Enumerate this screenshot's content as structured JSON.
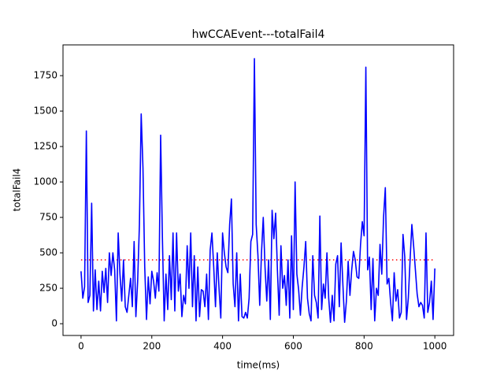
{
  "chart_data": {
    "type": "line",
    "title": "hwCCAEvent---totalFail4",
    "x_label": "time(ms)",
    "y_label": "totalFail4",
    "x": [
      0,
      5,
      10,
      15,
      20,
      25,
      30,
      35,
      40,
      45,
      50,
      55,
      60,
      65,
      70,
      75,
      80,
      85,
      90,
      95,
      100,
      105,
      110,
      115,
      120,
      125,
      130,
      135,
      140,
      145,
      150,
      155,
      160,
      165,
      170,
      175,
      180,
      185,
      190,
      195,
      200,
      205,
      210,
      215,
      220,
      225,
      230,
      235,
      240,
      245,
      250,
      255,
      260,
      265,
      270,
      275,
      280,
      285,
      290,
      295,
      300,
      305,
      310,
      315,
      320,
      325,
      330,
      335,
      340,
      345,
      350,
      355,
      360,
      365,
      370,
      375,
      380,
      385,
      390,
      395,
      400,
      405,
      410,
      415,
      420,
      425,
      430,
      435,
      440,
      445,
      450,
      455,
      460,
      465,
      470,
      475,
      480,
      485,
      490,
      495,
      500,
      505,
      510,
      515,
      520,
      525,
      530,
      535,
      540,
      545,
      550,
      555,
      560,
      565,
      570,
      575,
      580,
      585,
      590,
      595,
      600,
      605,
      610,
      615,
      620,
      625,
      630,
      635,
      640,
      645,
      650,
      655,
      660,
      665,
      670,
      675,
      680,
      685,
      690,
      695,
      700,
      705,
      710,
      715,
      720,
      725,
      730,
      735,
      740,
      745,
      750,
      755,
      760,
      765,
      770,
      775,
      780,
      785,
      790,
      795,
      800,
      805,
      810,
      815,
      820,
      825,
      830,
      835,
      840,
      845,
      850,
      855,
      860,
      865,
      870,
      875,
      880,
      885,
      890,
      895,
      900,
      905,
      910,
      915,
      920,
      925,
      930,
      935,
      940,
      945,
      950,
      955,
      960,
      965,
      970,
      975,
      980,
      985,
      990,
      995,
      1000
    ],
    "series": [
      {
        "color": "#0000ff",
        "values": [
          370,
          180,
          260,
          1360,
          150,
          200,
          850,
          90,
          380,
          100,
          300,
          90,
          370,
          220,
          390,
          150,
          500,
          340,
          500,
          380,
          20,
          640,
          350,
          160,
          450,
          120,
          80,
          200,
          320,
          120,
          580,
          50,
          300,
          700,
          1480,
          1100,
          400,
          30,
          330,
          140,
          370,
          300,
          180,
          360,
          230,
          1330,
          600,
          20,
          350,
          100,
          480,
          170,
          640,
          90,
          640,
          230,
          350,
          50,
          200,
          140,
          550,
          250,
          640,
          120,
          480,
          20,
          400,
          50,
          240,
          230,
          120,
          350,
          30,
          520,
          640,
          400,
          120,
          500,
          250,
          40,
          640,
          500,
          400,
          360,
          700,
          880,
          280,
          120,
          500,
          20,
          350,
          50,
          40,
          80,
          40,
          180,
          580,
          630,
          1870,
          700,
          480,
          130,
          500,
          750,
          400,
          160,
          450,
          30,
          800,
          600,
          780,
          380,
          60,
          550,
          250,
          340,
          130,
          450,
          40,
          620,
          100,
          1000,
          350,
          240,
          60,
          260,
          400,
          580,
          180,
          70,
          20,
          480,
          200,
          150,
          40,
          760,
          100,
          280,
          180,
          500,
          180,
          10,
          200,
          20,
          420,
          480,
          120,
          570,
          280,
          10,
          160,
          440,
          200,
          380,
          510,
          450,
          330,
          320,
          560,
          720,
          620,
          1810,
          380,
          470,
          100,
          460,
          20,
          250,
          200,
          560,
          350,
          750,
          960,
          280,
          320,
          150,
          20,
          360,
          160,
          240,
          40,
          80,
          630,
          470,
          30,
          180,
          450,
          700,
          550,
          380,
          210,
          120,
          150,
          130,
          40,
          640,
          80,
          150,
          300,
          30,
          390
        ]
      }
    ],
    "reference_line": {
      "value": 450,
      "color": "#ff0000"
    },
    "xlim": [
      -51,
      1053
    ],
    "xticks": [
      0,
      200,
      400,
      600,
      800,
      1000
    ],
    "ylim": [
      -83,
      1967
    ],
    "yticks": [
      0,
      250,
      500,
      750,
      1000,
      1250,
      1500,
      1750
    ]
  }
}
